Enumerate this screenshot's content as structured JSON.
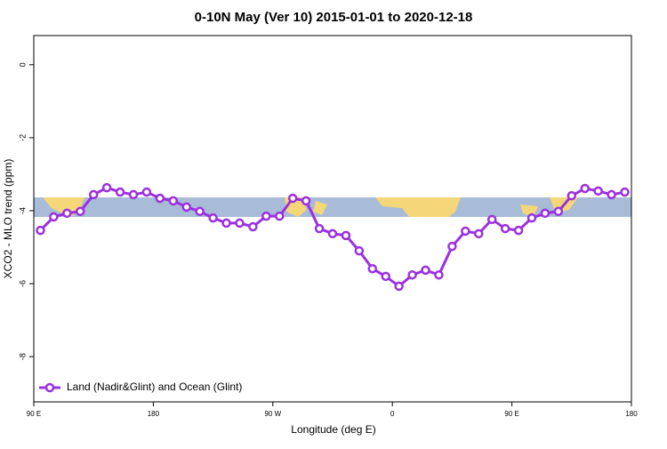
{
  "chart_data": {
    "type": "line",
    "title": "0-10N May (Ver 10)   2015-01-01 to 2020-12-18",
    "x_label": "Longitude (deg E)",
    "y_label": "XCO2 - MLO trend (ppm)",
    "x": [
      95,
      105,
      115,
      125,
      135,
      145,
      155,
      165,
      175,
      185,
      195,
      205,
      215,
      225,
      235,
      245,
      255,
      265,
      275,
      285,
      295,
      305,
      315,
      325,
      335,
      345,
      355,
      365,
      375,
      385,
      395,
      405,
      415,
      425,
      435,
      445,
      455,
      465,
      475,
      485,
      495,
      505,
      515,
      525,
      535
    ],
    "series": [
      {
        "name": "Land (Nadir&Glint) and Ocean (Glint)",
        "color": "#9b30e0",
        "values": [
          -4.54,
          -4.17,
          -4.07,
          -4.02,
          -3.56,
          -3.37,
          -3.49,
          -3.56,
          -3.49,
          -3.66,
          -3.73,
          -3.9,
          -4.02,
          -4.2,
          -4.34,
          -4.34,
          -4.44,
          -4.15,
          -4.15,
          -3.66,
          -3.73,
          -4.49,
          -4.63,
          -4.68,
          -5.1,
          -5.59,
          -5.8,
          -6.07,
          -5.76,
          -5.63,
          -5.76,
          -4.98,
          -4.56,
          -4.63,
          -4.24,
          -4.49,
          -4.54,
          -4.2,
          -4.07,
          -4.02,
          -3.59,
          -3.39,
          -3.46,
          -3.56,
          -3.49
        ]
      }
    ],
    "xlim": [
      90,
      540
    ],
    "xticks": [
      {
        "value": 90,
        "label": "90 E"
      },
      {
        "value": 180,
        "label": "180"
      },
      {
        "value": 270,
        "label": "90 W"
      },
      {
        "value": 360,
        "label": "0"
      },
      {
        "value": 450,
        "label": "90 E"
      },
      {
        "value": 540,
        "label": "180"
      }
    ],
    "ylim": [
      -9.24,
      0.8
    ],
    "yticks": [
      0,
      -2,
      -4,
      -6,
      -8
    ],
    "legend": "bottom-left"
  }
}
